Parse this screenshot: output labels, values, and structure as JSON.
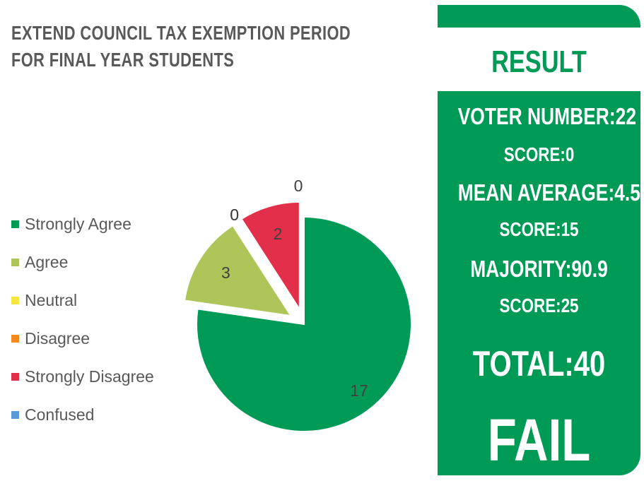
{
  "title": {
    "line1": "EXTEND COUNCIL TAX EXEMPTION PERIOD",
    "line2": "FOR FINAL YEAR STUDENTS"
  },
  "colors": {
    "green": "#009A57",
    "title_gray": "#595959"
  },
  "chart_data": {
    "type": "pie",
    "categories": [
      "Strongly Agree",
      "Agree",
      "Neutral",
      "Disagree",
      "Strongly Disagree",
      "Confused"
    ],
    "values": [
      17,
      3,
      0,
      0,
      2,
      0
    ],
    "colors": [
      "#009A57",
      "#AEC55A",
      "#F5E642",
      "#F28A1E",
      "#E2304A",
      "#5B9BD5"
    ],
    "exploded": true,
    "legend_position": "left",
    "title": "EXTEND COUNCIL TAX EXEMPTION PERIOD FOR FINAL YEAR STUDENTS"
  },
  "result": {
    "heading": "RESULT",
    "voter_number": "VOTER NUMBER:22",
    "score1": "SCORE:0",
    "mean_average": "MEAN AVERAGE:4.5",
    "score2": "SCORE:15",
    "majority": "MAJORITY:90.9",
    "score3": "SCORE:25",
    "total": "TOTAL:40",
    "verdict": "FAIL"
  }
}
